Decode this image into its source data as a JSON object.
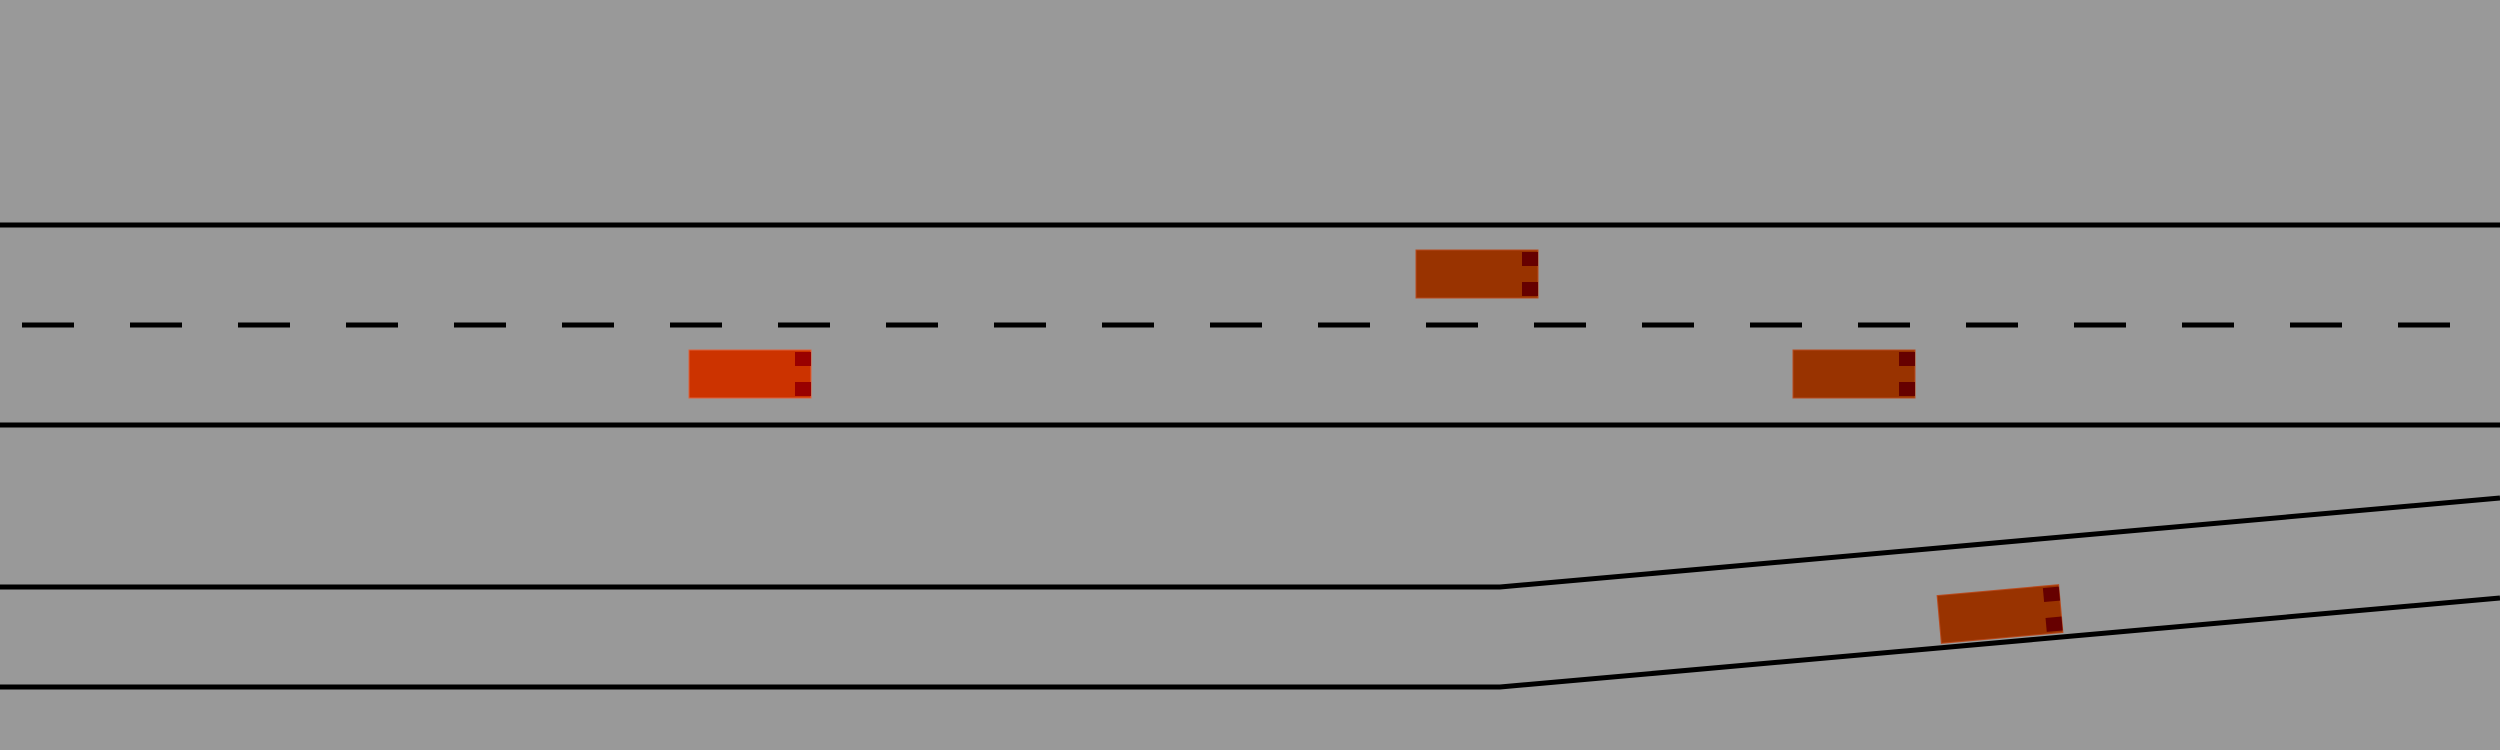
{
  "scene": {
    "type": "highway-merge-simulation",
    "background_color": "#999999",
    "road_line_color": "#000000",
    "main_road": {
      "lanes": 2,
      "center_line": "dashed"
    },
    "merge_ramp": {
      "side": "right",
      "shape": "diverging"
    }
  },
  "vehicles": [
    {
      "id": "ego",
      "role": "ego-vehicle",
      "lane": "main-lower",
      "heading": "right",
      "body_color": "#cc3300",
      "light_color": "#990000"
    },
    {
      "id": "npc-1",
      "role": "other-vehicle",
      "lane": "main-upper",
      "heading": "right",
      "body_color": "#993300",
      "light_color": "#660000"
    },
    {
      "id": "npc-2",
      "role": "other-vehicle",
      "lane": "main-lower",
      "heading": "right",
      "body_color": "#993300",
      "light_color": "#660000"
    },
    {
      "id": "npc-3",
      "role": "other-vehicle",
      "lane": "merge-ramp",
      "heading": "right",
      "body_color": "#993300",
      "light_color": "#660000"
    }
  ]
}
